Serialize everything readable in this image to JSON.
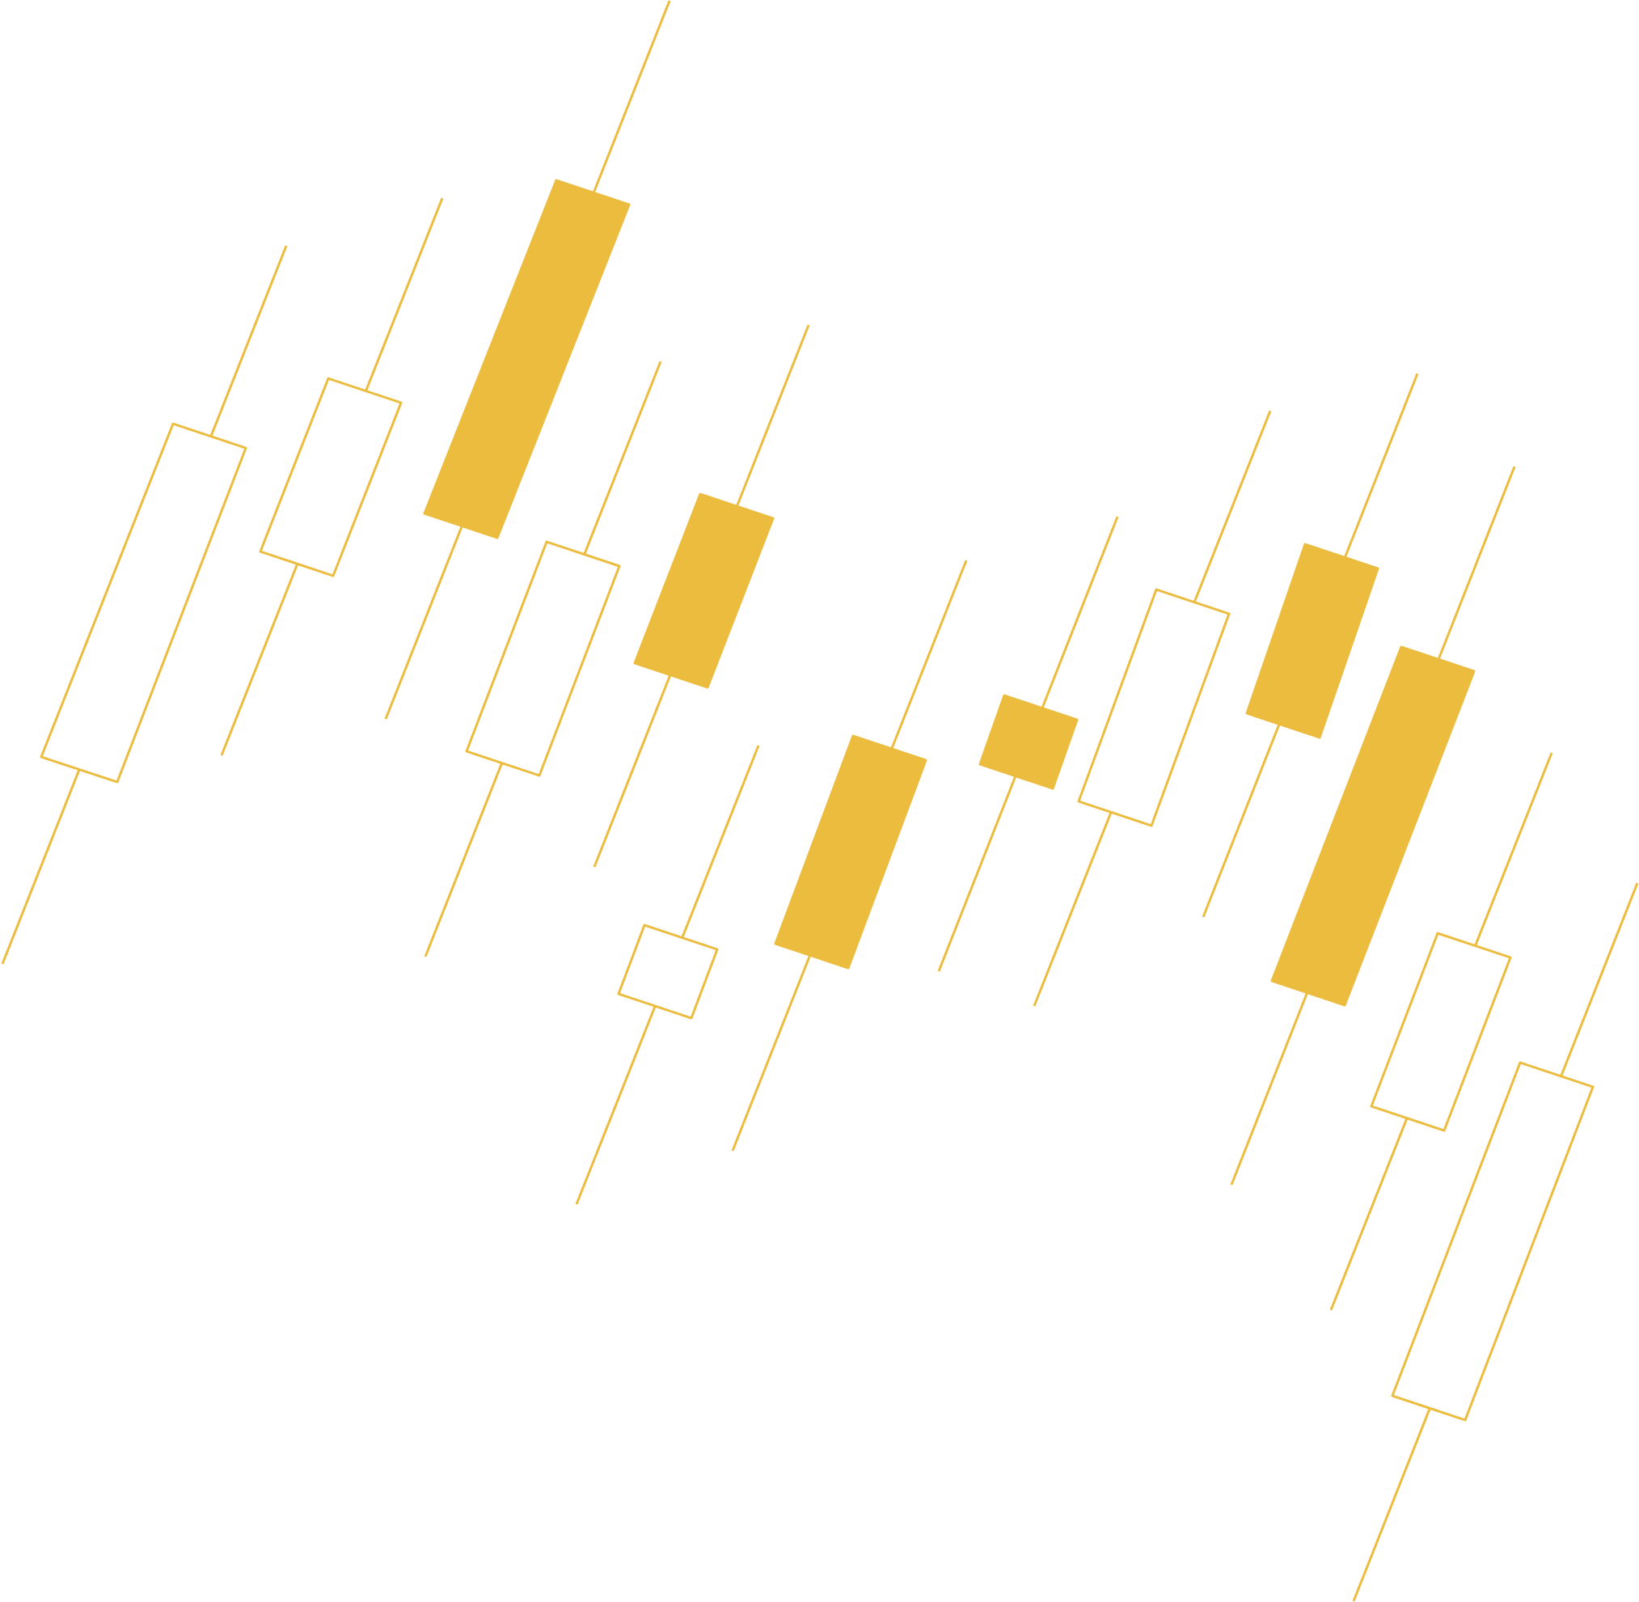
{
  "graphic": {
    "kind": "decorative-candlestick-pattern",
    "accent_color": "#ECBC3F",
    "background_color": "#FFFFFF",
    "candles": [
      {
        "style": "hollow"
      },
      {
        "style": "hollow"
      },
      {
        "style": "filled"
      },
      {
        "style": "hollow"
      },
      {
        "style": "filled"
      },
      {
        "style": "hollow"
      },
      {
        "style": "filled"
      },
      {
        "style": "filled"
      },
      {
        "style": "hollow"
      },
      {
        "style": "filled"
      },
      {
        "style": "filled"
      },
      {
        "style": "hollow"
      },
      {
        "style": "hollow"
      }
    ]
  }
}
